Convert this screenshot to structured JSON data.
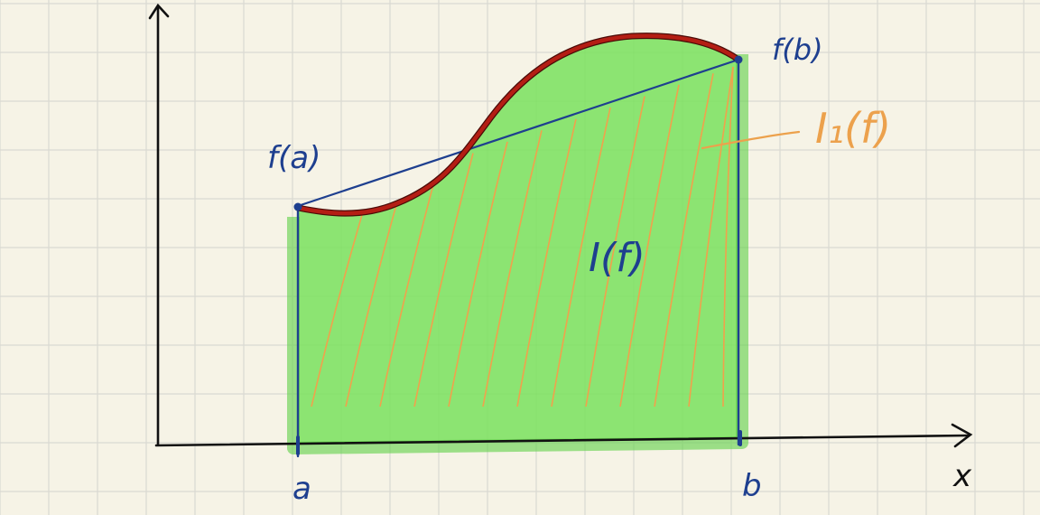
{
  "labels": {
    "fa": "f(a)",
    "fb": "f(b)",
    "integral": "I(f)",
    "trapezoid": "I₁(f)",
    "a": "a",
    "b": "b",
    "x": "x"
  },
  "colors": {
    "paper": "#f6f3e6",
    "grid": "#d9d9d2",
    "axis": "#111111",
    "blue": "#1e3f8f",
    "curve": "#b41e14",
    "curve_dark": "#4a0c08",
    "fill": "#79e05d",
    "fill_edge": "#5fd146",
    "hatch": "#f0a24c",
    "trapezoid_label": "#eca14c"
  }
}
